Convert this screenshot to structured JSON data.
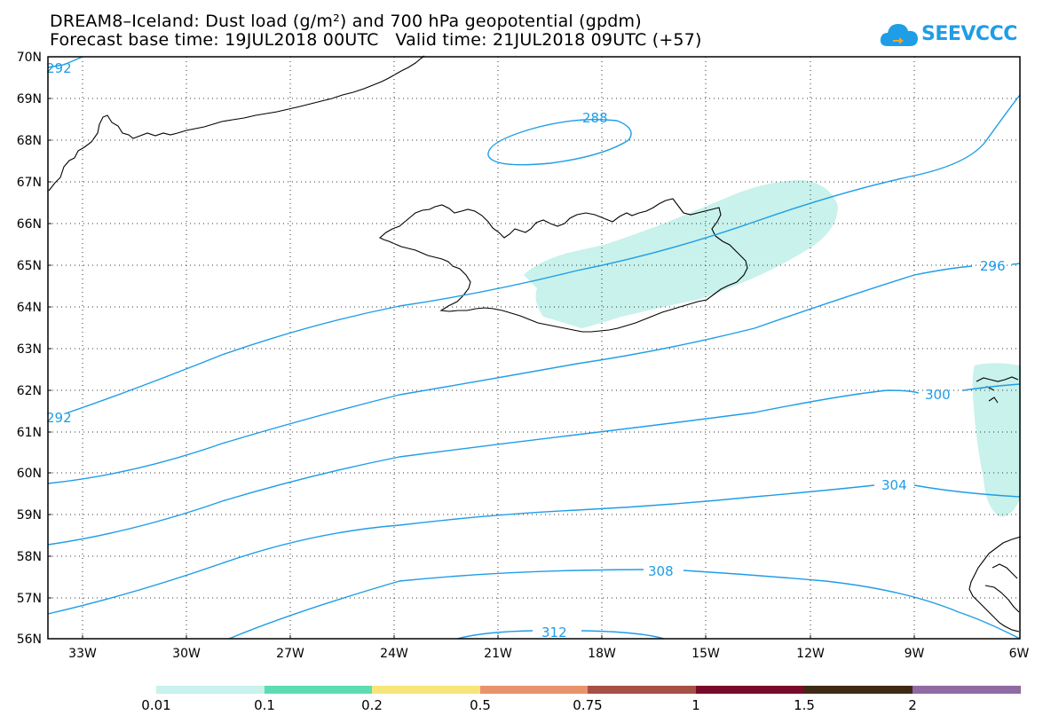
{
  "title_line1": "DREAM8–Iceland: Dust load (g/m²) and 700 hPa geopotential (gpdm)",
  "title_line2": "Forecast base time: 19JUL2018 00UTC   Valid time: 21JUL2018 09UTC (+57)",
  "logo_text": "SEEVCCC",
  "lat_labels": [
    "70N",
    "69N",
    "68N",
    "67N",
    "66N",
    "65N",
    "64N",
    "63N",
    "62N",
    "61N",
    "60N",
    "59N",
    "58N",
    "57N",
    "56N"
  ],
  "lon_labels": [
    "33W",
    "30W",
    "27W",
    "24W",
    "21W",
    "18W",
    "15W",
    "12W",
    "9W",
    "6W"
  ],
  "contour_labels": [
    "292",
    "288",
    "296",
    "292",
    "300",
    "304",
    "308",
    "312"
  ],
  "colorbar": {
    "labels": [
      "0.01",
      "0.1",
      "0.2",
      "0.5",
      "0.75",
      "1",
      "1.5",
      "2"
    ],
    "colors": [
      "#c8f2eb",
      "#5ddcb3",
      "#f7e57a",
      "#e8936c",
      "#a65046",
      "#7a0a2a",
      "#3e2a14",
      "#8f6ba3"
    ]
  },
  "colors": {
    "contour": "#1f9de6",
    "dust": "#c8f2eb",
    "coast": "#000000"
  }
}
